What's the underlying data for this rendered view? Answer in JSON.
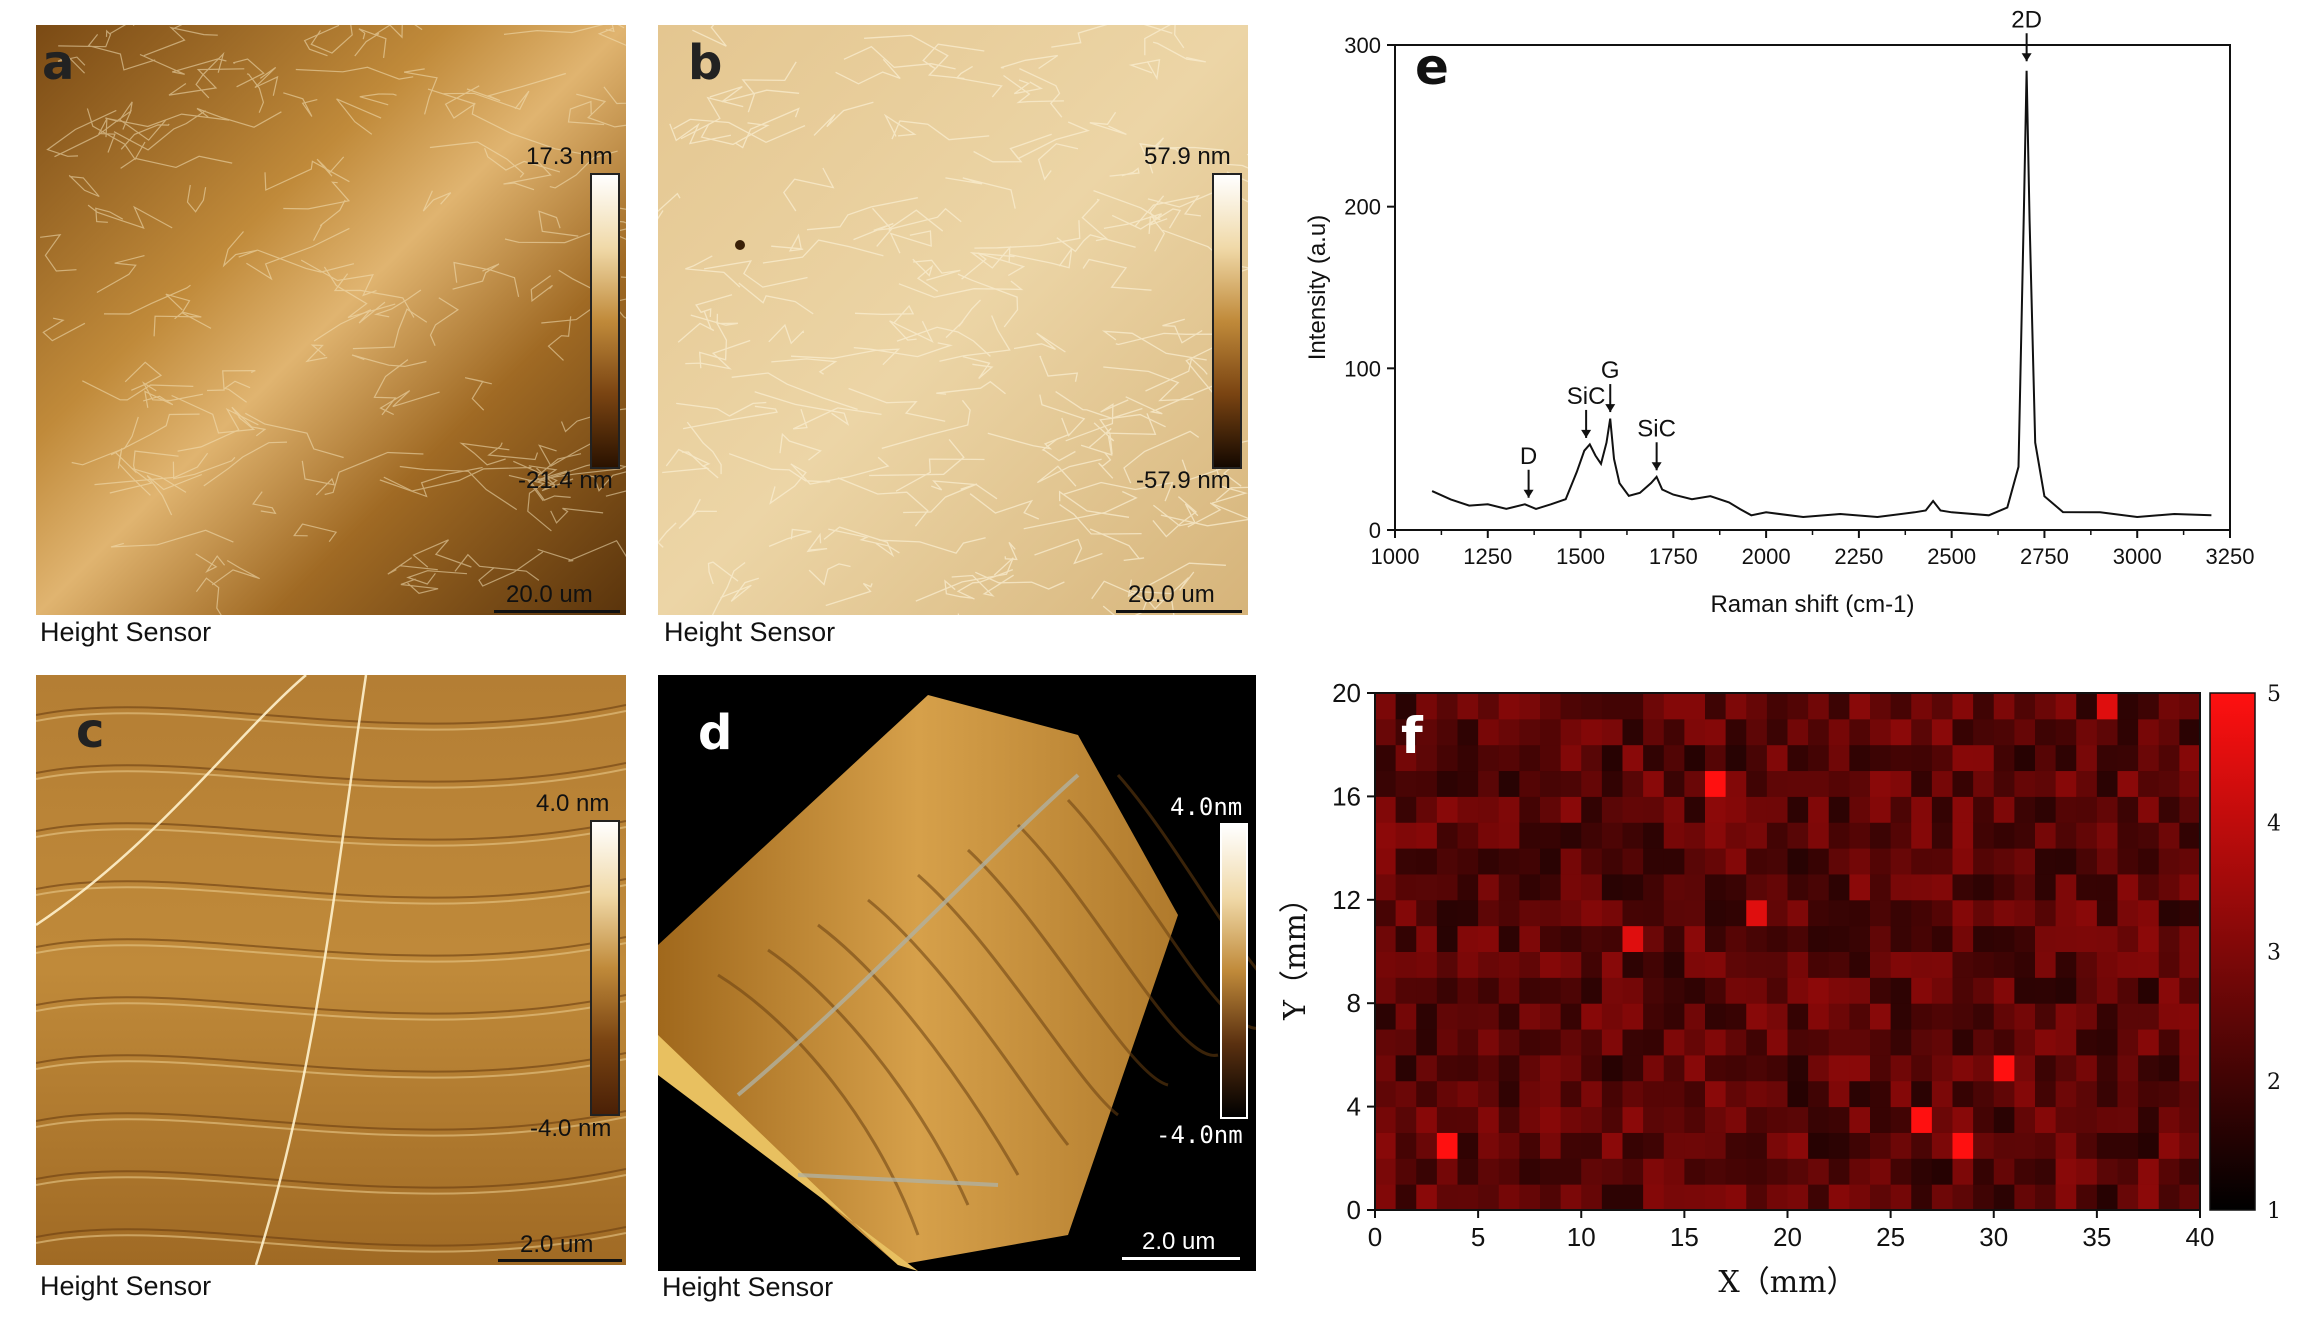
{
  "panels": {
    "a": {
      "letter": "a",
      "caption": "Height Sensor",
      "cbar_max": "17.3 nm",
      "cbar_min": "-21.4 nm",
      "scale": "20.0 um"
    },
    "b": {
      "letter": "b",
      "caption": "Height Sensor",
      "cbar_max": "57.9 nm",
      "cbar_min": "-57.9 nm",
      "scale": "20.0 um"
    },
    "c": {
      "letter": "c",
      "caption": "Height Sensor",
      "cbar_max": "4.0 nm",
      "cbar_min": "-4.0 nm",
      "scale": "2.0 um"
    },
    "d": {
      "letter": "d",
      "caption": "Height Sensor",
      "cbar_max": "4.0nm",
      "cbar_min": "-4.0nm",
      "scale": "2.0 um"
    },
    "e": {
      "letter": "e"
    },
    "f": {
      "letter": "f"
    }
  },
  "colors": {
    "afm_dark": "#4a2a08",
    "afm_mid": "#b07a2c",
    "afm_light": "#f2ddb0",
    "heat_low": "#000000",
    "heat_high": "#ff1010"
  },
  "chart_data": [
    {
      "type": "line",
      "panel": "e",
      "xlabel": "Raman shift (cm-1)",
      "ylabel": "Intensity (a.u)",
      "xlim": [
        1000,
        3250
      ],
      "ylim": [
        0,
        300
      ],
      "xticks": [
        "1000",
        "1250",
        "1500",
        "1750",
        "2000",
        "2250",
        "2500",
        "2750",
        "3000",
        "3250"
      ],
      "yticks": [
        "0",
        "100",
        "200",
        "300"
      ],
      "series": [
        {
          "x": [
            1100,
            1150,
            1200,
            1250,
            1300,
            1350,
            1380,
            1420,
            1460,
            1490,
            1510,
            1525,
            1540,
            1555,
            1570,
            1580,
            1590,
            1605,
            1630,
            1660,
            1690,
            1705,
            1720,
            1750,
            1800,
            1850,
            1900,
            1930,
            1960,
            2000,
            2100,
            2200,
            2300,
            2400,
            2430,
            2450,
            2470,
            2500,
            2600,
            2650,
            2680,
            2695,
            2702,
            2710,
            2725,
            2750,
            2800,
            2900,
            3000,
            3100,
            3200
          ],
          "y": [
            25,
            18,
            16,
            15,
            14,
            15,
            14,
            15,
            20,
            35,
            50,
            52,
            47,
            40,
            55,
            68,
            45,
            28,
            22,
            22,
            30,
            32,
            26,
            21,
            20,
            20,
            18,
            12,
            10,
            10,
            9,
            9,
            9,
            10,
            13,
            17,
            13,
            10,
            10,
            13,
            40,
            200,
            285,
            190,
            55,
            20,
            12,
            10,
            9,
            9,
            10
          ]
        }
      ],
      "annotations": [
        {
          "label": "D",
          "x": 1360,
          "y": 15
        },
        {
          "label": "SiC",
          "x": 1515,
          "y": 52
        },
        {
          "label": "G",
          "x": 1580,
          "y": 68
        },
        {
          "label": "SiC",
          "x": 1705,
          "y": 32
        },
        {
          "label": "2D",
          "x": 2702,
          "y": 285
        }
      ]
    },
    {
      "type": "heatmap",
      "panel": "f",
      "xlabel": "X（mm）",
      "ylabel": "Y（mm）",
      "xlim": [
        0,
        40
      ],
      "ylim": [
        0,
        20
      ],
      "xticks": [
        "0",
        "5",
        "10",
        "15",
        "20",
        "25",
        "30",
        "35",
        "40"
      ],
      "yticks": [
        "0",
        "4",
        "8",
        "12",
        "16",
        "20"
      ],
      "colorbar_ticks": [
        "1",
        "2",
        "3",
        "4",
        "5"
      ],
      "colorbar_range": [
        1,
        5
      ],
      "hotspots": [
        {
          "x": 3,
          "y": 2.2,
          "value": 5
        },
        {
          "x": 16,
          "y": 16,
          "value": 5
        },
        {
          "x": 26,
          "y": 3.3,
          "value": 5
        },
        {
          "x": 28,
          "y": 2.8,
          "value": 5
        },
        {
          "x": 30,
          "y": 5.8,
          "value": 5
        },
        {
          "x": 12,
          "y": 10.5,
          "value": 4.5
        },
        {
          "x": 18,
          "y": 11.5,
          "value": 4.5
        },
        {
          "x": 35,
          "y": 19.5,
          "value": 4.5
        }
      ]
    }
  ]
}
